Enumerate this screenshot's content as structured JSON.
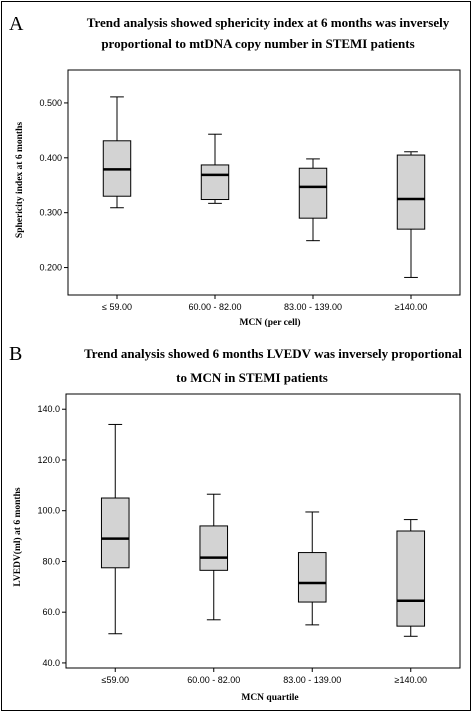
{
  "panels": [
    {
      "letter": "A"
    },
    {
      "letter": "B"
    }
  ],
  "chart_data": [
    {
      "type": "box",
      "title_lines": [
        "Trend analysis showed sphericity index at 6 months was inversely",
        "proportional to mtDNA copy number in STEMI patients"
      ],
      "xlabel": "MCN (per cell)",
      "ylabel": "Sphericity index at 6 months",
      "categories": [
        "≤ 59.00",
        "60.00 - 82.00",
        "83.00 - 139.00",
        "≥140.00"
      ],
      "ylim": [
        0.15,
        0.56
      ],
      "yticks": [
        0.2,
        0.3,
        0.4,
        0.5
      ],
      "ytick_labels": [
        "0.200",
        "0.300",
        "0.400",
        "0.500"
      ],
      "boxes": [
        {
          "min": 0.309,
          "q1": 0.33,
          "median": 0.379,
          "q3": 0.431,
          "max": 0.511
        },
        {
          "min": 0.317,
          "q1": 0.324,
          "median": 0.369,
          "q3": 0.387,
          "max": 0.443
        },
        {
          "min": 0.249,
          "q1": 0.29,
          "median": 0.347,
          "q3": 0.381,
          "max": 0.398
        },
        {
          "min": 0.182,
          "q1": 0.27,
          "median": 0.325,
          "q3": 0.405,
          "max": 0.411
        }
      ],
      "box_color": "#d3d3d3"
    },
    {
      "type": "box",
      "title_lines": [
        "Trend analysis showed 6 months LVEDV was inversely proportional",
        "to MCN in STEMI patients"
      ],
      "xlabel": "MCN quartile",
      "ylabel": "LVEDV(ml) at 6 months",
      "categories": [
        "≤59.00",
        "60.00 - 82.00",
        "83.00 - 139.00",
        "≥140.00"
      ],
      "ylim": [
        38,
        146
      ],
      "yticks": [
        40,
        60,
        80,
        100,
        120,
        140
      ],
      "ytick_labels": [
        "40.0",
        "60.0",
        "80.0",
        "100.0",
        "120.0",
        "140.0"
      ],
      "boxes": [
        {
          "min": 51.5,
          "q1": 77.5,
          "median": 89.0,
          "q3": 105.0,
          "max": 134.0
        },
        {
          "min": 57.0,
          "q1": 76.5,
          "median": 81.5,
          "q3": 94.0,
          "max": 106.5
        },
        {
          "min": 55.0,
          "q1": 64.0,
          "median": 71.5,
          "q3": 83.5,
          "max": 99.5
        },
        {
          "min": 50.5,
          "q1": 54.5,
          "median": 64.5,
          "q3": 92.0,
          "max": 96.5
        }
      ],
      "box_color": "#d3d3d3"
    }
  ]
}
